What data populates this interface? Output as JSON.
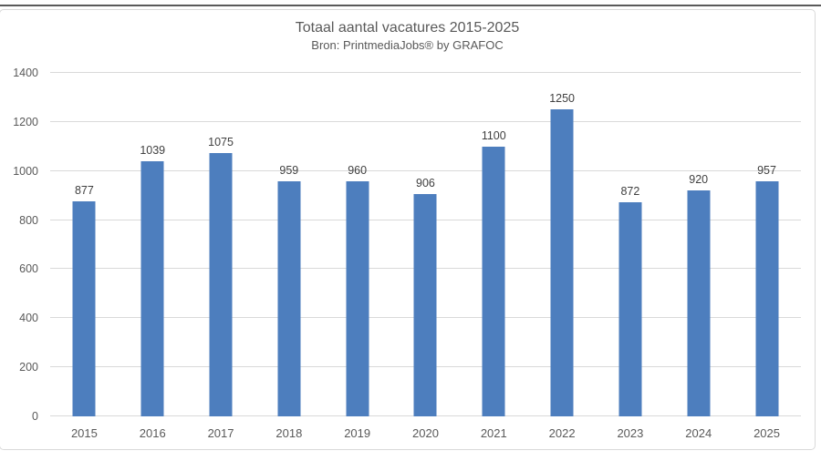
{
  "chart_data": {
    "type": "bar",
    "title": "Totaal aantal vacatures 2015-2025",
    "subtitle": "Bron: PrintmediaJobs® by GRAFOC",
    "categories": [
      "2015",
      "2016",
      "2017",
      "2018",
      "2019",
      "2020",
      "2021",
      "2022",
      "2023",
      "2024",
      "2025"
    ],
    "values": [
      877,
      1039,
      1075,
      959,
      960,
      906,
      1100,
      1250,
      872,
      920,
      957
    ],
    "xlabel": "",
    "ylabel": "",
    "ylim": [
      0,
      1400
    ],
    "ytick_step": 200,
    "grid": true,
    "legend": "none",
    "data_labels": true,
    "colors": {
      "bar": "#4d7ebe",
      "gridline": "#d9d9d9",
      "frame_border": "#d9d9d9",
      "title_text": "#595959",
      "tick_text": "#595959",
      "value_text": "#404040",
      "top_rule": "#5a5a5a"
    }
  }
}
